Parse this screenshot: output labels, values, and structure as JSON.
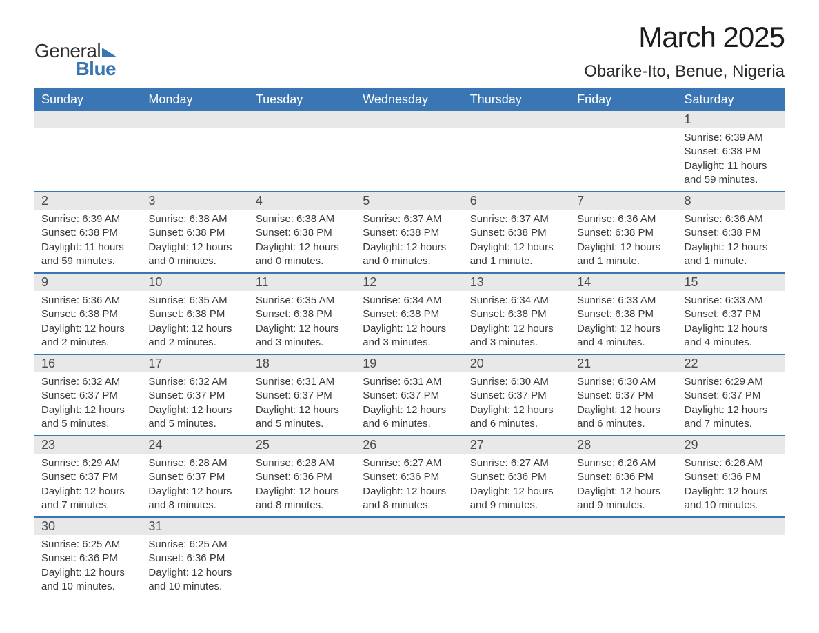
{
  "logo": {
    "word1": "General",
    "word2": "Blue"
  },
  "title": "March 2025",
  "location": "Obarike-Ito, Benue, Nigeria",
  "colors": {
    "header_bg": "#3a76b3",
    "header_text": "#ffffff",
    "daynum_bg": "#e8e8e8",
    "row_border": "#3a76b3",
    "body_text": "#3a3a3a"
  },
  "day_names": [
    "Sunday",
    "Monday",
    "Tuesday",
    "Wednesday",
    "Thursday",
    "Friday",
    "Saturday"
  ],
  "weeks": [
    [
      null,
      null,
      null,
      null,
      null,
      null,
      {
        "n": "1",
        "sunrise": "6:39 AM",
        "sunset": "6:38 PM",
        "daylight": "11 hours and 59 minutes."
      }
    ],
    [
      {
        "n": "2",
        "sunrise": "6:39 AM",
        "sunset": "6:38 PM",
        "daylight": "11 hours and 59 minutes."
      },
      {
        "n": "3",
        "sunrise": "6:38 AM",
        "sunset": "6:38 PM",
        "daylight": "12 hours and 0 minutes."
      },
      {
        "n": "4",
        "sunrise": "6:38 AM",
        "sunset": "6:38 PM",
        "daylight": "12 hours and 0 minutes."
      },
      {
        "n": "5",
        "sunrise": "6:37 AM",
        "sunset": "6:38 PM",
        "daylight": "12 hours and 0 minutes."
      },
      {
        "n": "6",
        "sunrise": "6:37 AM",
        "sunset": "6:38 PM",
        "daylight": "12 hours and 1 minute."
      },
      {
        "n": "7",
        "sunrise": "6:36 AM",
        "sunset": "6:38 PM",
        "daylight": "12 hours and 1 minute."
      },
      {
        "n": "8",
        "sunrise": "6:36 AM",
        "sunset": "6:38 PM",
        "daylight": "12 hours and 1 minute."
      }
    ],
    [
      {
        "n": "9",
        "sunrise": "6:36 AM",
        "sunset": "6:38 PM",
        "daylight": "12 hours and 2 minutes."
      },
      {
        "n": "10",
        "sunrise": "6:35 AM",
        "sunset": "6:38 PM",
        "daylight": "12 hours and 2 minutes."
      },
      {
        "n": "11",
        "sunrise": "6:35 AM",
        "sunset": "6:38 PM",
        "daylight": "12 hours and 3 minutes."
      },
      {
        "n": "12",
        "sunrise": "6:34 AM",
        "sunset": "6:38 PM",
        "daylight": "12 hours and 3 minutes."
      },
      {
        "n": "13",
        "sunrise": "6:34 AM",
        "sunset": "6:38 PM",
        "daylight": "12 hours and 3 minutes."
      },
      {
        "n": "14",
        "sunrise": "6:33 AM",
        "sunset": "6:38 PM",
        "daylight": "12 hours and 4 minutes."
      },
      {
        "n": "15",
        "sunrise": "6:33 AM",
        "sunset": "6:37 PM",
        "daylight": "12 hours and 4 minutes."
      }
    ],
    [
      {
        "n": "16",
        "sunrise": "6:32 AM",
        "sunset": "6:37 PM",
        "daylight": "12 hours and 5 minutes."
      },
      {
        "n": "17",
        "sunrise": "6:32 AM",
        "sunset": "6:37 PM",
        "daylight": "12 hours and 5 minutes."
      },
      {
        "n": "18",
        "sunrise": "6:31 AM",
        "sunset": "6:37 PM",
        "daylight": "12 hours and 5 minutes."
      },
      {
        "n": "19",
        "sunrise": "6:31 AM",
        "sunset": "6:37 PM",
        "daylight": "12 hours and 6 minutes."
      },
      {
        "n": "20",
        "sunrise": "6:30 AM",
        "sunset": "6:37 PM",
        "daylight": "12 hours and 6 minutes."
      },
      {
        "n": "21",
        "sunrise": "6:30 AM",
        "sunset": "6:37 PM",
        "daylight": "12 hours and 6 minutes."
      },
      {
        "n": "22",
        "sunrise": "6:29 AM",
        "sunset": "6:37 PM",
        "daylight": "12 hours and 7 minutes."
      }
    ],
    [
      {
        "n": "23",
        "sunrise": "6:29 AM",
        "sunset": "6:37 PM",
        "daylight": "12 hours and 7 minutes."
      },
      {
        "n": "24",
        "sunrise": "6:28 AM",
        "sunset": "6:37 PM",
        "daylight": "12 hours and 8 minutes."
      },
      {
        "n": "25",
        "sunrise": "6:28 AM",
        "sunset": "6:36 PM",
        "daylight": "12 hours and 8 minutes."
      },
      {
        "n": "26",
        "sunrise": "6:27 AM",
        "sunset": "6:36 PM",
        "daylight": "12 hours and 8 minutes."
      },
      {
        "n": "27",
        "sunrise": "6:27 AM",
        "sunset": "6:36 PM",
        "daylight": "12 hours and 9 minutes."
      },
      {
        "n": "28",
        "sunrise": "6:26 AM",
        "sunset": "6:36 PM",
        "daylight": "12 hours and 9 minutes."
      },
      {
        "n": "29",
        "sunrise": "6:26 AM",
        "sunset": "6:36 PM",
        "daylight": "12 hours and 10 minutes."
      }
    ],
    [
      {
        "n": "30",
        "sunrise": "6:25 AM",
        "sunset": "6:36 PM",
        "daylight": "12 hours and 10 minutes."
      },
      {
        "n": "31",
        "sunrise": "6:25 AM",
        "sunset": "6:36 PM",
        "daylight": "12 hours and 10 minutes."
      },
      null,
      null,
      null,
      null,
      null
    ]
  ],
  "labels": {
    "sunrise": "Sunrise: ",
    "sunset": "Sunset: ",
    "daylight": "Daylight: "
  }
}
